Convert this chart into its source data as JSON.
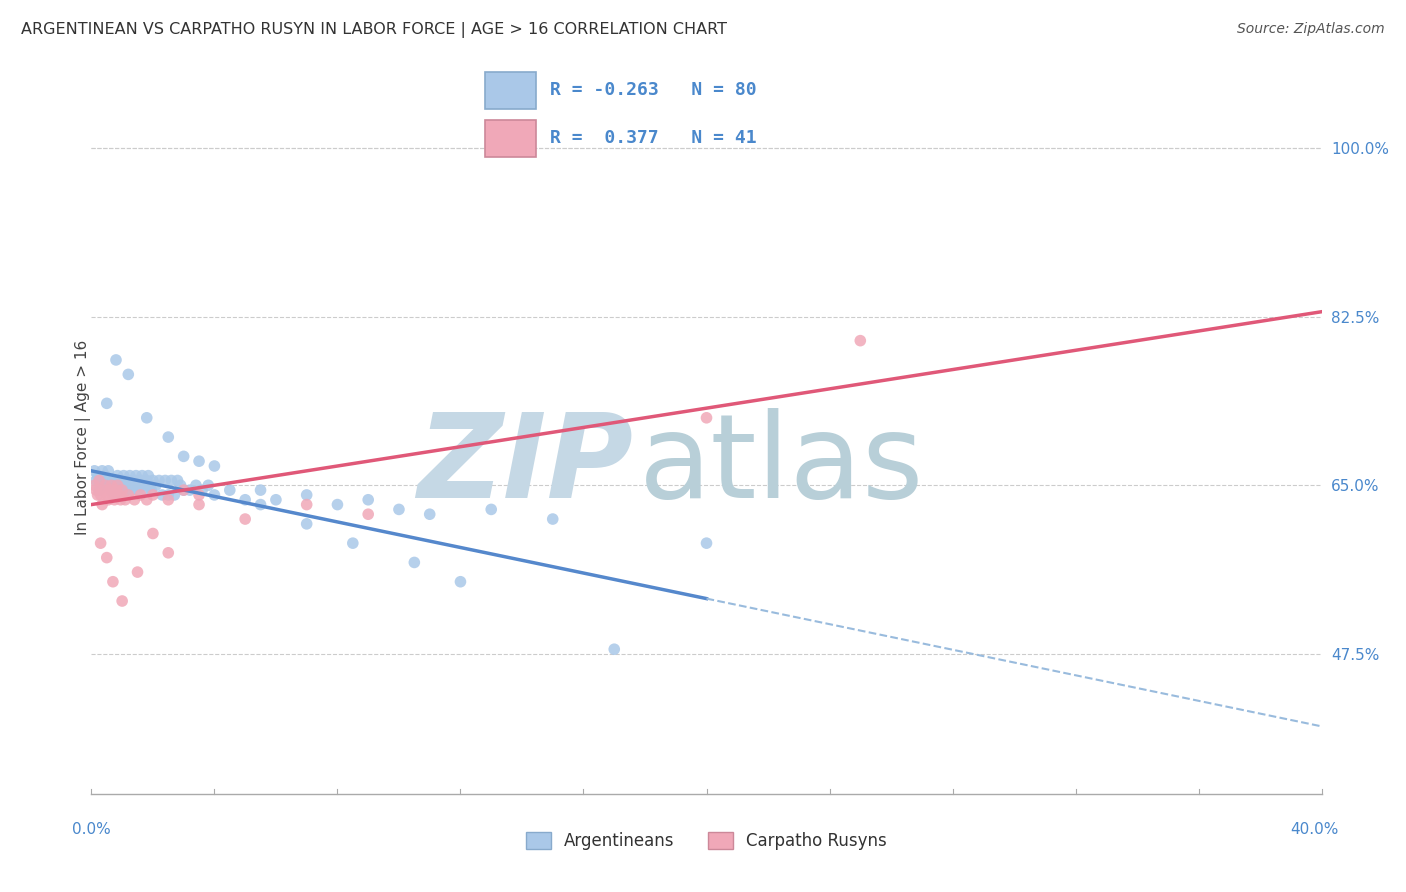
{
  "title": "ARGENTINEAN VS CARPATHO RUSYN IN LABOR FORCE | AGE > 16 CORRELATION CHART",
  "source": "Source: ZipAtlas.com",
  "ylabel": "In Labor Force | Age > 16",
  "y_ticks": [
    47.5,
    65.0,
    82.5,
    100.0
  ],
  "y_tick_labels": [
    "47.5%",
    "65.0%",
    "82.5%",
    "100.0%"
  ],
  "xmin": 0.0,
  "xmax": 40.0,
  "ymin": 33.0,
  "ymax": 107.0,
  "legend_R_blue": "-0.263",
  "legend_N_blue": "80",
  "legend_R_pink": "0.377",
  "legend_N_pink": "41",
  "blue_color": "#aac8e8",
  "pink_color": "#f0a8b8",
  "blue_line_color": "#5588cc",
  "pink_line_color": "#e05878",
  "dashed_color": "#99bbdd",
  "watermark_zip_color": "#c5d8e5",
  "watermark_atlas_color": "#b8cfd8",
  "bg_color": "#ffffff",
  "grid_color": "#cccccc",
  "blue_x": [
    0.1,
    0.15,
    0.2,
    0.25,
    0.3,
    0.35,
    0.4,
    0.45,
    0.5,
    0.55,
    0.6,
    0.65,
    0.7,
    0.75,
    0.8,
    0.85,
    0.9,
    0.95,
    1.0,
    1.05,
    1.1,
    1.15,
    1.2,
    1.25,
    1.3,
    1.35,
    1.4,
    1.45,
    1.5,
    1.55,
    1.6,
    1.65,
    1.7,
    1.75,
    1.8,
    1.85,
    1.9,
    1.95,
    2.0,
    2.1,
    2.2,
    2.3,
    2.4,
    2.5,
    2.6,
    2.7,
    2.8,
    2.9,
    3.0,
    3.2,
    3.4,
    3.6,
    3.8,
    4.0,
    4.5,
    5.0,
    5.5,
    6.0,
    7.0,
    8.0,
    9.0,
    10.0,
    11.0,
    13.0,
    15.0,
    20.0,
    0.5,
    0.8,
    1.2,
    1.8,
    2.5,
    3.0,
    3.5,
    4.0,
    5.5,
    7.0,
    8.5,
    10.5,
    12.0,
    17.0
  ],
  "blue_y": [
    66.5,
    65.5,
    66.0,
    64.5,
    65.5,
    66.5,
    65.0,
    66.0,
    65.5,
    66.5,
    65.0,
    64.5,
    65.5,
    64.0,
    65.5,
    66.0,
    65.0,
    64.5,
    65.5,
    66.0,
    65.0,
    64.5,
    65.5,
    66.0,
    64.5,
    65.0,
    65.5,
    66.0,
    64.5,
    65.0,
    65.5,
    66.0,
    65.0,
    64.5,
    65.5,
    66.0,
    65.0,
    64.5,
    65.5,
    65.0,
    65.5,
    64.0,
    65.5,
    64.0,
    65.5,
    64.0,
    65.5,
    65.0,
    64.5,
    64.5,
    65.0,
    64.5,
    65.0,
    64.0,
    64.5,
    63.5,
    64.5,
    63.5,
    64.0,
    63.0,
    63.5,
    62.5,
    62.0,
    62.5,
    61.5,
    59.0,
    73.5,
    78.0,
    76.5,
    72.0,
    70.0,
    68.0,
    67.5,
    67.0,
    63.0,
    61.0,
    59.0,
    57.0,
    55.0,
    48.0
  ],
  "pink_x": [
    0.1,
    0.15,
    0.2,
    0.25,
    0.3,
    0.35,
    0.4,
    0.45,
    0.5,
    0.55,
    0.6,
    0.65,
    0.7,
    0.75,
    0.8,
    0.85,
    0.9,
    0.95,
    1.0,
    1.1,
    1.2,
    1.4,
    1.6,
    1.8,
    2.0,
    2.5,
    3.0,
    3.5,
    0.3,
    0.5,
    0.7,
    1.0,
    1.5,
    2.0,
    2.5,
    3.5,
    5.0,
    7.0,
    9.0,
    20.0,
    25.0
  ],
  "pink_y": [
    65.0,
    64.5,
    64.0,
    65.5,
    64.0,
    63.0,
    64.5,
    65.0,
    64.0,
    63.5,
    64.5,
    65.0,
    64.0,
    63.5,
    64.5,
    65.0,
    64.0,
    63.5,
    64.5,
    63.5,
    64.0,
    63.5,
    64.0,
    63.5,
    64.0,
    63.5,
    64.5,
    64.0,
    59.0,
    57.5,
    55.0,
    53.0,
    56.0,
    60.0,
    58.0,
    63.0,
    61.5,
    63.0,
    62.0,
    72.0,
    80.0
  ],
  "blue_line_x0": 0.0,
  "blue_line_y0": 66.5,
  "blue_line_x1": 20.0,
  "blue_line_y1": 57.5,
  "blue_solid_end": 20.0,
  "blue_line_x2": 40.0,
  "blue_line_y2": 40.0,
  "pink_line_x0": 0.0,
  "pink_line_y0": 63.0,
  "pink_line_x1": 40.0,
  "pink_line_y1": 83.0
}
